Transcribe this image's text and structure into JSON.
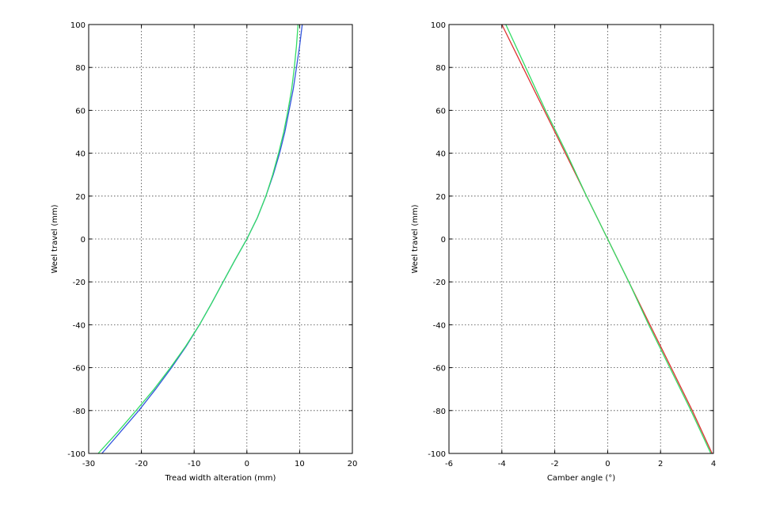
{
  "chart_data": [
    {
      "type": "line",
      "xlabel": "Tread width alteration (mm)",
      "ylabel": "Weel travel (mm)",
      "xlim": [
        -30,
        20
      ],
      "ylim": [
        -100,
        100
      ],
      "xticks": [
        -30,
        -20,
        -10,
        0,
        10,
        20
      ],
      "yticks": [
        -100,
        -80,
        -60,
        -40,
        -20,
        0,
        20,
        40,
        60,
        80,
        100
      ],
      "grid": true,
      "series": [
        {
          "color": "#3355dd",
          "points": [
            [
              -27.5,
              -100
            ],
            [
              -24,
              -90
            ],
            [
              -20.5,
              -80
            ],
            [
              -17.3,
              -70
            ],
            [
              -14.3,
              -60
            ],
            [
              -11.5,
              -50
            ],
            [
              -9,
              -40
            ],
            [
              -6.7,
              -30
            ],
            [
              -4.5,
              -20
            ],
            [
              -2.3,
              -10
            ],
            [
              0,
              0
            ],
            [
              2,
              10
            ],
            [
              3.6,
              20
            ],
            [
              5,
              30
            ],
            [
              6.2,
              40
            ],
            [
              7.2,
              50
            ],
            [
              8,
              60
            ],
            [
              8.8,
              70
            ],
            [
              9.4,
              80
            ],
            [
              10,
              90
            ],
            [
              10.5,
              100
            ]
          ]
        },
        {
          "color": "#33dd66",
          "points": [
            [
              -28.2,
              -100
            ],
            [
              -24.5,
              -90
            ],
            [
              -21,
              -80
            ],
            [
              -17.6,
              -70
            ],
            [
              -14.5,
              -60
            ],
            [
              -11.6,
              -50
            ],
            [
              -9,
              -40
            ],
            [
              -6.7,
              -30
            ],
            [
              -4.5,
              -20
            ],
            [
              -2.3,
              -10
            ],
            [
              0,
              0
            ],
            [
              2,
              10
            ],
            [
              3.6,
              20
            ],
            [
              4.9,
              30
            ],
            [
              6,
              40
            ],
            [
              7,
              50
            ],
            [
              7.8,
              60
            ],
            [
              8.5,
              70
            ],
            [
              9,
              80
            ],
            [
              9.4,
              90
            ],
            [
              9.7,
              100
            ]
          ]
        }
      ]
    },
    {
      "type": "line",
      "xlabel": "Camber angle (°)",
      "ylabel": "Weel travel (mm)",
      "xlim": [
        -6,
        4
      ],
      "ylim": [
        -100,
        100
      ],
      "xticks": [
        -6,
        -4,
        -2,
        0,
        2,
        4
      ],
      "yticks": [
        -100,
        -80,
        -60,
        -40,
        -20,
        0,
        20,
        40,
        60,
        80,
        100
      ],
      "grid": true,
      "series": [
        {
          "color": "#dd3333",
          "points": [
            [
              -4,
              100
            ],
            [
              -3.2,
              80
            ],
            [
              -2.4,
              60
            ],
            [
              -1.6,
              40
            ],
            [
              -0.8,
              20
            ],
            [
              0,
              0
            ],
            [
              0.8,
              -20
            ],
            [
              1.6,
              -40
            ],
            [
              2.4,
              -60
            ],
            [
              3.2,
              -80
            ],
            [
              3.95,
              -100
            ]
          ]
        },
        {
          "color": "#33dd66",
          "points": [
            [
              -3.85,
              100
            ],
            [
              -3.1,
              80
            ],
            [
              -2.35,
              60
            ],
            [
              -1.55,
              40
            ],
            [
              -0.8,
              20
            ],
            [
              0,
              0
            ],
            [
              0.8,
              -20
            ],
            [
              1.55,
              -40
            ],
            [
              2.35,
              -60
            ],
            [
              3.15,
              -80
            ],
            [
              3.9,
              -100
            ]
          ]
        }
      ]
    }
  ]
}
